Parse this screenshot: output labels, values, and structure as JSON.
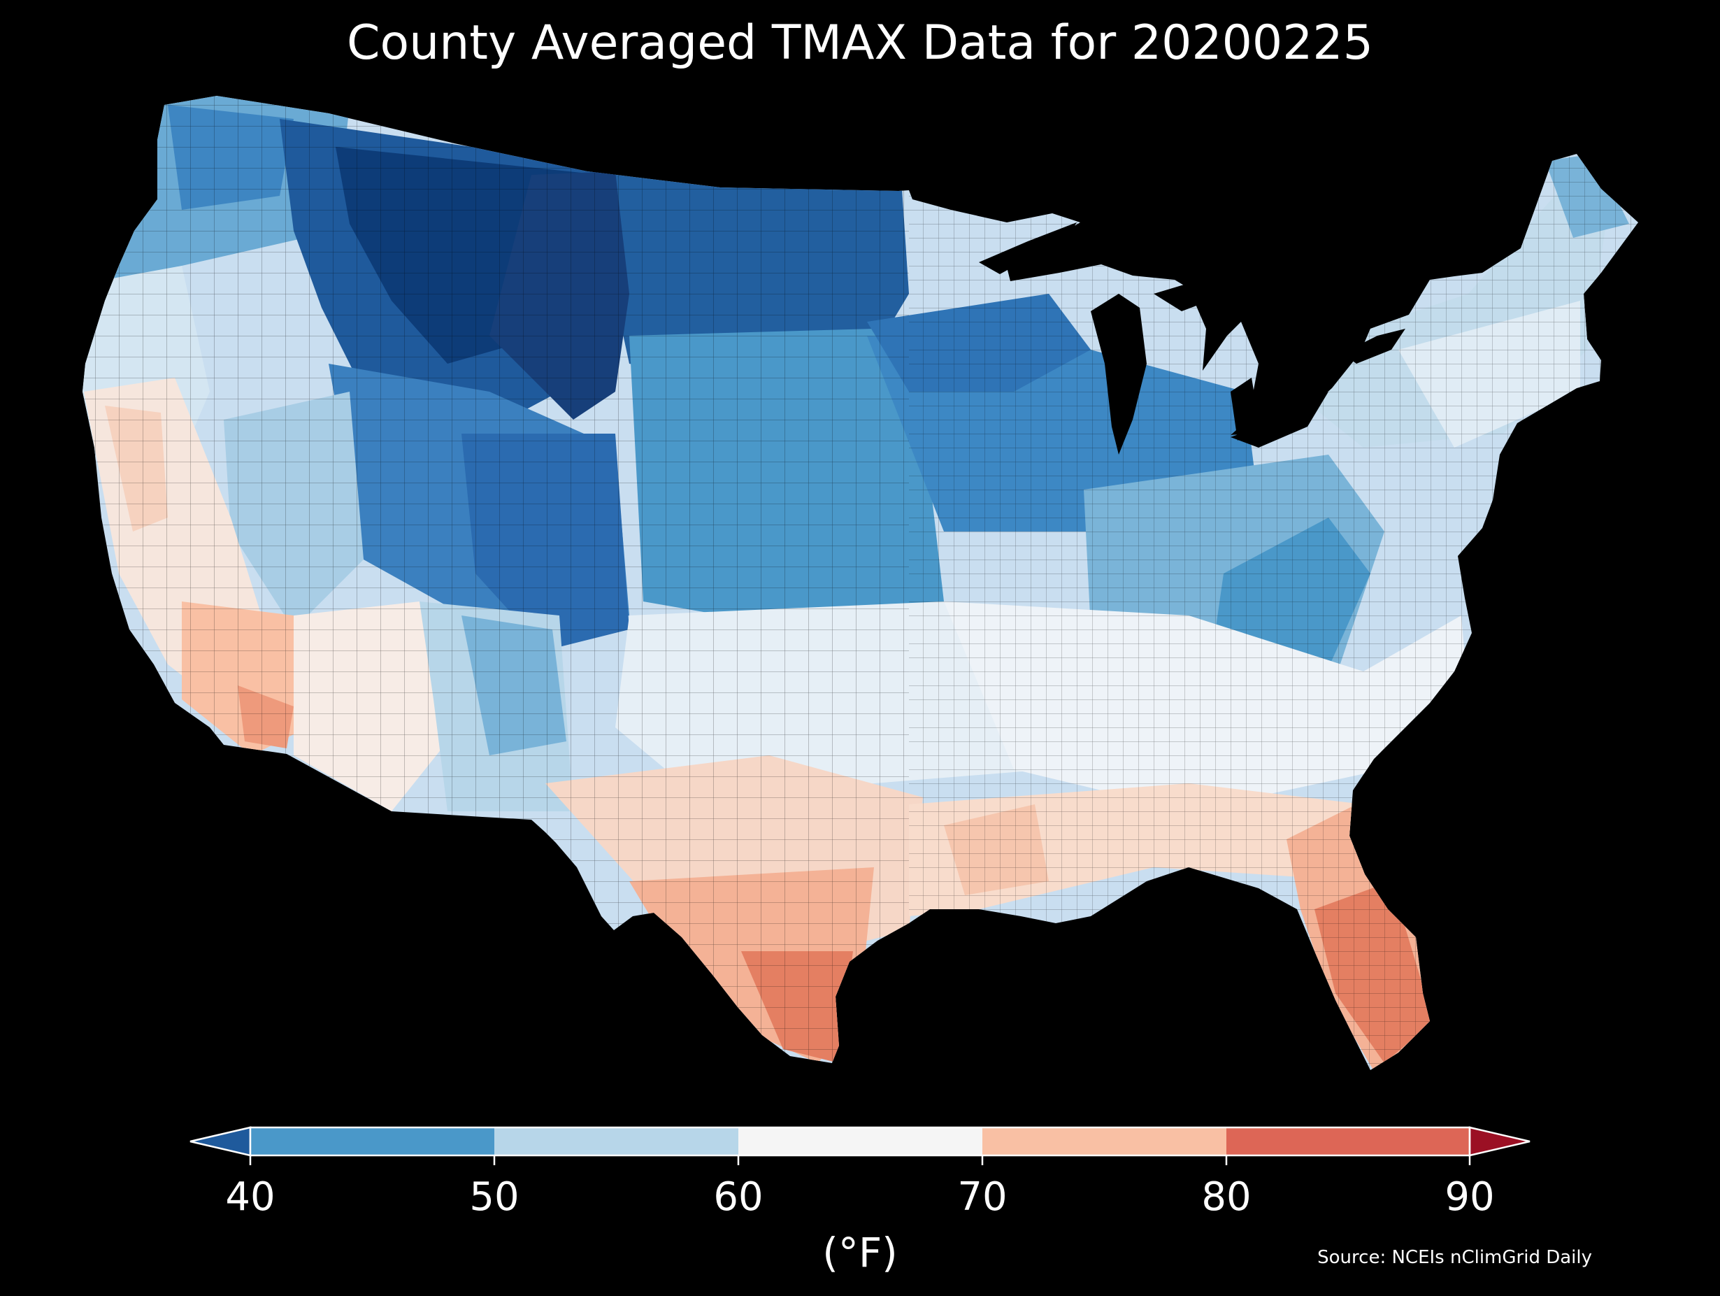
{
  "title": "County Averaged TMAX Data for 20200225",
  "colorbar": {
    "label": "(°F)",
    "ticks": [
      "40",
      "50",
      "60",
      "70",
      "80",
      "90"
    ],
    "bins": [
      {
        "from": 40,
        "to": 50,
        "color": "#4a98c9"
      },
      {
        "from": 50,
        "to": 60,
        "color": "#b7d6e9"
      },
      {
        "from": 60,
        "to": 70,
        "color": "#f5f5f5"
      },
      {
        "from": 70,
        "to": 80,
        "color": "#f9c0a4"
      },
      {
        "from": 80,
        "to": 90,
        "color": "#dd6656"
      }
    ],
    "under_color": "#1f5a9c",
    "over_color": "#9b1024",
    "extend": "both"
  },
  "source": "Source: NCEIs nClimGrid Daily",
  "map": {
    "region": "Contiguous United States counties",
    "variable": "TMAX",
    "date": "20200225",
    "background": "#000000",
    "county_edge_color": "#000000"
  }
}
